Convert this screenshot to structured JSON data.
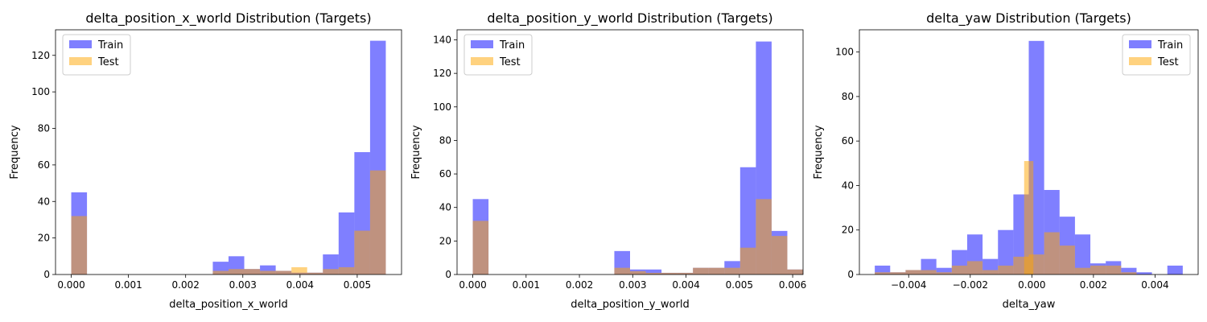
{
  "colors": {
    "train": "#0000ff",
    "test": "#ffa500",
    "train_alpha": 0.5,
    "test_alpha": 0.5
  },
  "chart_data": [
    {
      "type": "bar",
      "title": "delta_position_x_world Distribution (Targets)",
      "xlabel": "delta_position_x_world",
      "ylabel": "Frequency",
      "xlim": [
        -0.000275,
        0.005775
      ],
      "ylim": [
        0,
        134
      ],
      "xticks": [
        0.0,
        0.001,
        0.002,
        0.003,
        0.004,
        0.005
      ],
      "xtick_labels": [
        "0.000",
        "0.001",
        "0.002",
        "0.003",
        "0.004",
        "0.005"
      ],
      "yticks": [
        0,
        20,
        40,
        60,
        80,
        100,
        120
      ],
      "ytick_labels": [
        "0",
        "20",
        "40",
        "60",
        "80",
        "100",
        "120"
      ],
      "legend_position": "top-left",
      "series": [
        {
          "name": "Train",
          "bin_start": 0.0,
          "bin_width": 0.000275,
          "values": [
            45,
            0,
            0,
            0,
            0,
            0,
            0,
            0,
            0,
            7,
            10,
            3,
            5,
            2,
            1,
            1,
            11,
            34,
            67,
            128
          ]
        },
        {
          "name": "Test",
          "bin_start": 0.0,
          "bin_width": 0.000275,
          "values": [
            32,
            0,
            0,
            0,
            0,
            0,
            0,
            0,
            0,
            2,
            3,
            3,
            2,
            2,
            4,
            1,
            3,
            4,
            24,
            57
          ]
        }
      ]
    },
    {
      "type": "bar",
      "title": "delta_position_y_world Distribution (Targets)",
      "xlabel": "delta_position_y_world",
      "ylabel": "Frequency",
      "xlim": [
        -0.000295,
        0.006195
      ],
      "ylim": [
        0,
        146
      ],
      "xticks": [
        0.0,
        0.001,
        0.002,
        0.003,
        0.004,
        0.005,
        0.006
      ],
      "xtick_labels": [
        "0.000",
        "0.001",
        "0.002",
        "0.003",
        "0.004",
        "0.005",
        "0.006"
      ],
      "yticks": [
        0,
        20,
        40,
        60,
        80,
        100,
        120,
        140
      ],
      "ytick_labels": [
        "0",
        "20",
        "40",
        "60",
        "80",
        "100",
        "120",
        "140"
      ],
      "legend_position": "top-left",
      "series": [
        {
          "name": "Train",
          "bin_start": 0.0,
          "bin_width": 0.000295,
          "values": [
            45,
            0,
            0,
            0,
            0,
            0,
            0,
            0,
            0,
            14,
            3,
            3,
            1,
            1,
            4,
            4,
            8,
            64,
            139,
            26,
            3
          ]
        },
        {
          "name": "Test",
          "bin_start": 0.0,
          "bin_width": 0.000295,
          "values": [
            32,
            0,
            0,
            0,
            0,
            0,
            0,
            0,
            0,
            4,
            2,
            1,
            1,
            1,
            4,
            4,
            4,
            16,
            45,
            23,
            3
          ]
        }
      ]
    },
    {
      "type": "bar",
      "title": "delta_yaw Distribution (Targets)",
      "xlabel": "delta_yaw",
      "ylabel": "Frequency",
      "xlim": [
        -0.0056,
        0.0054
      ],
      "ylim": [
        0,
        110
      ],
      "xticks": [
        -0.004,
        -0.002,
        0.0,
        0.002,
        0.004
      ],
      "xtick_labels": [
        "−0.004",
        "−0.002",
        "0.000",
        "0.002",
        "0.004"
      ],
      "yticks": [
        0,
        20,
        40,
        60,
        80,
        100
      ],
      "ytick_labels": [
        "0",
        "20",
        "40",
        "60",
        "80",
        "100"
      ],
      "legend_position": "top-right",
      "series": [
        {
          "name": "Train",
          "bin_start": -0.0051,
          "bin_width": 0.0005,
          "values": [
            4,
            1,
            2,
            7,
            3,
            11,
            18,
            7,
            20,
            36,
            105,
            38,
            26,
            18,
            5,
            6,
            3,
            1,
            0,
            4
          ]
        },
        {
          "name": "Test",
          "bin_start": -0.0051,
          "bin_width": 0.0005,
          "values": [
            1,
            1,
            2,
            2,
            1,
            4,
            6,
            2,
            4,
            8,
            9,
            19,
            13,
            3,
            4,
            4,
            1,
            0,
            0,
            0
          ]
        },
        {
          "name": "",
          "bin_start": -0.00025,
          "bin_width": 0.0003,
          "values": [
            51
          ]
        }
      ]
    }
  ]
}
